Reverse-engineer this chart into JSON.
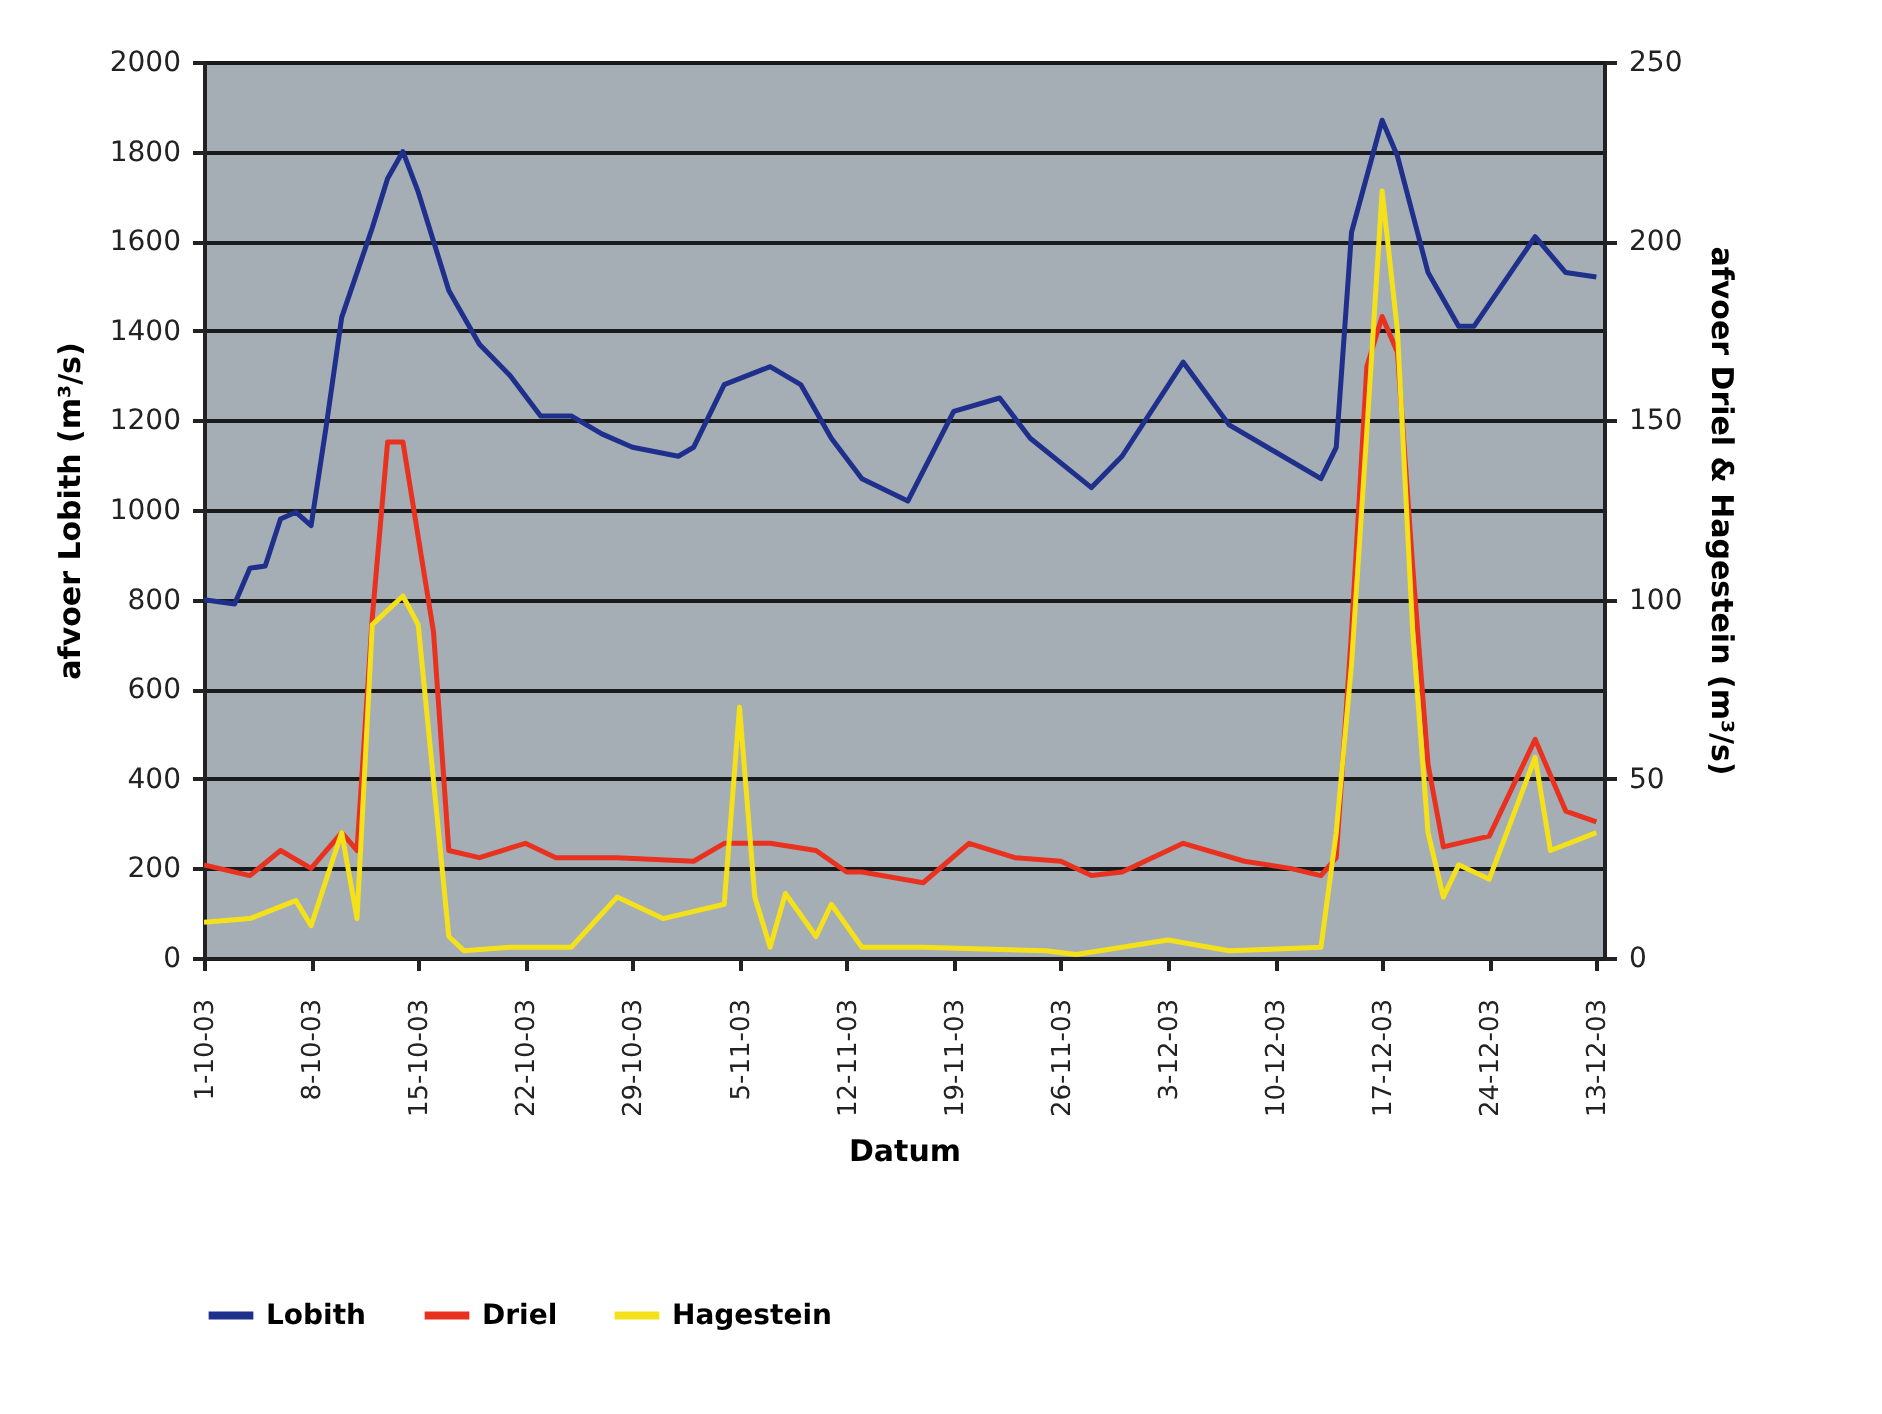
{
  "chart_data": {
    "type": "line",
    "xlabel": "Datum",
    "ylabel": "afvoer Lobith (m³/s)",
    "y2label": "afvoer Driel & Hagestein (m³/s)",
    "xlim": [
      "--10-01",
      "--12-31T12:00"
    ],
    "xticks": [
      {
        "value": "--10-01",
        "label": "1-10-03"
      },
      {
        "value": "--10-08",
        "label": "8-10-03"
      },
      {
        "value": "--10-15",
        "label": "15-10-03"
      },
      {
        "value": "--10-22",
        "label": "22-10-03"
      },
      {
        "value": "--10-29",
        "label": "29-10-03"
      },
      {
        "value": "--11-05",
        "label": "5-11-03"
      },
      {
        "value": "--11-12",
        "label": "12-11-03"
      },
      {
        "value": "--11-19",
        "label": "19-11-03"
      },
      {
        "value": "--11-26",
        "label": "26-11-03"
      },
      {
        "value": "--12-03",
        "label": "3-12-03"
      },
      {
        "value": "--12-10",
        "label": "10-12-03"
      },
      {
        "value": "--12-17",
        "label": "17-12-03"
      },
      {
        "value": "--12-24",
        "label": "24-12-03"
      },
      {
        "value": "--12-31",
        "label": "13-12-03"
      }
    ],
    "ylim": [
      0,
      2000
    ],
    "yticks": [
      0,
      200,
      400,
      600,
      800,
      1000,
      1200,
      1400,
      1600,
      1800,
      2000
    ],
    "y2lim": [
      0,
      250
    ],
    "y2ticks": [
      0,
      50,
      100,
      150,
      200,
      250
    ],
    "grid": "y",
    "legend": "bottom",
    "series": [
      {
        "name": "Lobith",
        "color": "#1f2f8c",
        "x": [
          "--10-01",
          "--10-03",
          "--10-04",
          "--10-05",
          "--10-06",
          "--10-07",
          "--10-08",
          "--10-09",
          "--10-10",
          "--10-12",
          "--10-13",
          "--10-14",
          "--10-15",
          "--10-17",
          "--10-19",
          "--10-21",
          "--10-23",
          "--10-25",
          "--10-27",
          "--10-29",
          "--11-01",
          "--11-02",
          "--11-04",
          "--11-07",
          "--11-09",
          "--11-11",
          "--11-13",
          "--11-16",
          "--11-19",
          "--11-22",
          "--11-24",
          "--11-28",
          "--11-30",
          "--12-04",
          "--12-07",
          "--12-10",
          "--12-13",
          "--12-14",
          "--12-15",
          "--12-17",
          "--12-18",
          "--12-20",
          "--12-22",
          "--12-23",
          "--12-27",
          "--12-29",
          "--12-31"
        ],
        "values": [
          800,
          790,
          870,
          875,
          980,
          995,
          965,
          1190,
          1430,
          1630,
          1740,
          1800,
          1710,
          1490,
          1370,
          1300,
          1210,
          1210,
          1170,
          1140,
          1120,
          1140,
          1280,
          1320,
          1280,
          1160,
          1070,
          1020,
          1220,
          1250,
          1160,
          1050,
          1120,
          1330,
          1190,
          1130,
          1070,
          1140,
          1620,
          1870,
          1790,
          1530,
          1410,
          1410,
          1610,
          1530,
          1520
        ]
      },
      {
        "name": "Driel",
        "color": "#e8321f",
        "axis": "y2",
        "x": [
          "--10-01",
          "--10-04",
          "--10-06",
          "--10-08",
          "--10-10",
          "--10-11",
          "--10-12",
          "--10-13",
          "--10-14",
          "--10-16",
          "--10-17",
          "--10-19",
          "--10-22",
          "--10-24",
          "--10-28",
          "--11-02",
          "--11-04",
          "--11-07",
          "--11-10",
          "--11-12",
          "--11-13",
          "--11-17",
          "--11-20",
          "--11-23",
          "--11-26",
          "--11-28",
          "--11-30",
          "--12-04",
          "--12-08",
          "--12-11",
          "--12-13",
          "--12-14",
          "--12-15",
          "--12-16",
          "--12-17",
          "--12-18",
          "--12-19",
          "--12-20",
          "--12-21",
          "--12-24",
          "--12-27",
          "--12-29",
          "--12-31"
        ],
        "values": [
          26,
          23,
          30,
          25,
          35,
          30,
          95,
          144,
          144,
          91,
          30,
          28,
          32,
          28,
          28,
          27,
          32,
          32,
          30,
          24,
          24,
          21,
          32,
          28,
          27,
          23,
          24,
          32,
          27,
          25,
          23,
          28,
          91,
          165,
          179,
          169,
          109,
          54,
          31,
          34,
          61,
          41,
          38
        ]
      },
      {
        "name": "Hagestein",
        "color": "#f5e11a",
        "axis": "y2",
        "x": [
          "--10-01",
          "--10-04",
          "--10-07",
          "--10-08",
          "--10-10",
          "--10-11",
          "--10-12",
          "--10-14",
          "--10-15",
          "--10-17",
          "--10-18",
          "--10-21",
          "--10-25",
          "--10-28",
          "--10-31",
          "--11-04",
          "--11-05",
          "--11-06",
          "--11-07",
          "--11-08",
          "--11-10",
          "--11-11",
          "--11-13",
          "--11-17",
          "--11-25",
          "--11-27",
          "--12-03",
          "--12-07",
          "--12-13",
          "--12-14",
          "--12-15",
          "--12-16",
          "--12-17",
          "--12-18",
          "--12-19",
          "--12-20",
          "--12-21",
          "--12-22",
          "--12-24",
          "--12-27",
          "--12-28",
          "--12-31"
        ],
        "values": [
          10,
          11,
          16,
          9,
          35,
          11,
          93,
          101,
          93,
          6,
          2,
          3,
          3,
          17,
          11,
          15,
          70,
          17,
          3,
          18,
          6,
          15,
          3,
          3,
          2,
          1,
          5,
          2,
          3,
          35,
          82,
          147,
          214,
          175,
          91,
          35,
          17,
          26,
          22,
          56,
          30,
          35
        ]
      }
    ]
  }
}
